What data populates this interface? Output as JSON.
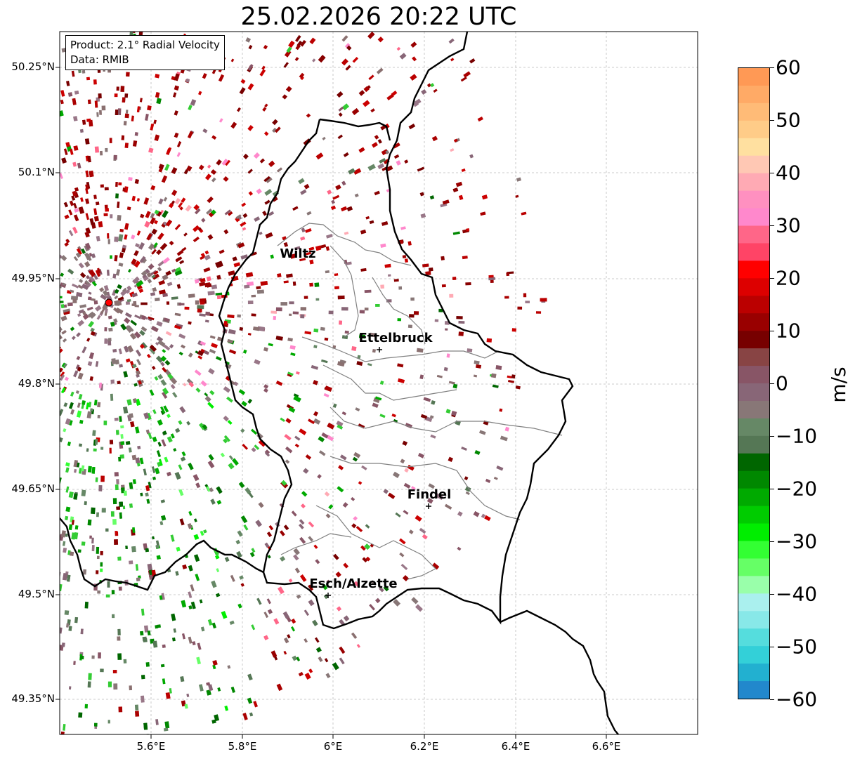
{
  "title": "25.02.2026 20:22 UTC",
  "info": {
    "product": "Product: 2.1° Radial Velocity",
    "data_source": "Data: RMIB"
  },
  "axes": {
    "lat_ticks": [
      "50.25°N",
      "50.1°N",
      "49.95°N",
      "49.8°N",
      "49.65°N",
      "49.5°N",
      "49.35°N"
    ],
    "lon_ticks": [
      "5.6°E",
      "5.8°E",
      "6°E",
      "6.2°E",
      "6.4°E",
      "6.6°E"
    ]
  },
  "cities": [
    {
      "name": "Wiltz"
    },
    {
      "name": "Ettelbruck"
    },
    {
      "name": "Findel"
    },
    {
      "name": "Esch/Alzette"
    }
  ],
  "colorbar": {
    "label": "m/s",
    "ticks": [
      "60",
      "50",
      "40",
      "30",
      "20",
      "10",
      "0",
      "−10",
      "−20",
      "−30",
      "−40",
      "−50",
      "−60"
    ],
    "colors": [
      "#ff9955",
      "#ffaa66",
      "#ffbb77",
      "#ffcc88",
      "#ffe0a0",
      "#ffc8b4",
      "#ffaab4",
      "#ff90c0",
      "#ff88cc",
      "#ff6688",
      "#ff4466",
      "#ff0000",
      "#dd0000",
      "#bb0000",
      "#990000",
      "#770000",
      "#884444",
      "#885566",
      "#886677",
      "#887777",
      "#668866",
      "#557755",
      "#006600",
      "#008800",
      "#00aa00",
      "#00cc00",
      "#00ee00",
      "#33ff33",
      "#66ff66",
      "#99ffaa",
      "#aaf0ee",
      "#88e8e8",
      "#55dddd",
      "#33d0d8",
      "#22b0d0",
      "#2288cc"
    ]
  },
  "radar_site": {
    "color": "#ff0000"
  }
}
